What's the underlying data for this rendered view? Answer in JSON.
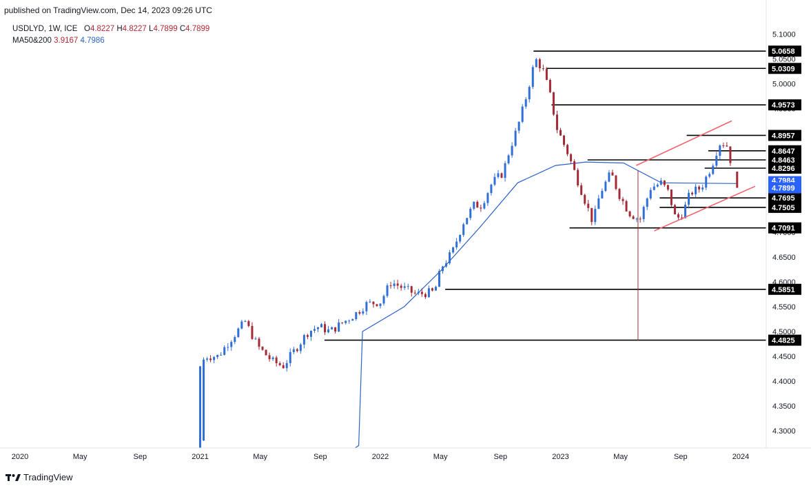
{
  "header": {
    "published": "published on TradingView.com, Dec 14, 2023 09:26 UTC"
  },
  "legend": {
    "symbol": "USDLYD, 1W, ICE",
    "open_label": "O",
    "open": "4.8227",
    "high_label": "H",
    "high": "4.8227",
    "low_label": "L",
    "low": "4.7899",
    "close_label": "C",
    "close": "4.7899",
    "ma_label": "MA50&200",
    "ma50": "3.9167",
    "ma200": "4.7986"
  },
  "footer": {
    "brand": "TradingView",
    "logo_icon": "tradingview-logo-icon"
  },
  "colors": {
    "bull": "#2f6fd6",
    "bear": "#a52a36",
    "ma": "#2a62c9",
    "trendline": "#f0626c",
    "level": "#000000",
    "current": "#2962ff"
  },
  "chart_data": {
    "type": "candlestick",
    "symbol": "USDLYD",
    "interval": "1W",
    "ylim": [
      4.265,
      5.13
    ],
    "y_ticks": [
      "5.1000",
      "5.0500",
      "5.0000",
      "4.9500",
      "4.9000",
      "4.8500",
      "4.8000",
      "4.7500",
      "4.7000",
      "4.6500",
      "4.6000",
      "4.5500",
      "4.5000",
      "4.4500",
      "4.4000",
      "4.3500",
      "4.3000"
    ],
    "x_labels": [
      "2020",
      "May",
      "Sep",
      "2021",
      "May",
      "Sep",
      "2022",
      "May",
      "Sep",
      "2023",
      "May",
      "Sep",
      "2024"
    ],
    "horizontal_levels": [
      "5.0658",
      "5.0309",
      "4.9573",
      "4.8957",
      "4.8647",
      "4.8463",
      "4.8296",
      "4.7695",
      "4.7505",
      "4.7091",
      "4.5851",
      "4.4825"
    ],
    "current_price": "4.7899",
    "hidden_label": "4.7984",
    "ma200_anchor_points": [
      [
        0.0,
        4.27
      ],
      [
        0.01,
        4.5
      ],
      [
        0.12,
        4.55
      ],
      [
        0.22,
        4.625
      ],
      [
        0.32,
        4.71
      ],
      [
        0.42,
        4.8
      ],
      [
        0.52,
        4.835
      ],
      [
        0.6,
        4.842
      ],
      [
        0.7,
        4.84
      ],
      [
        0.8,
        4.8
      ],
      [
        1.0,
        4.7986
      ]
    ],
    "anchors": [
      [
        2021.0,
        4.28
      ],
      [
        2021.02,
        4.45
      ],
      [
        2021.1,
        4.45
      ],
      [
        2021.16,
        4.48
      ],
      [
        2021.25,
        4.52
      ],
      [
        2021.32,
        4.47
      ],
      [
        2021.4,
        4.44
      ],
      [
        2021.46,
        4.43
      ],
      [
        2021.52,
        4.46
      ],
      [
        2021.6,
        4.5
      ],
      [
        2021.66,
        4.51
      ],
      [
        2021.72,
        4.5
      ],
      [
        2021.8,
        4.52
      ],
      [
        2021.86,
        4.535
      ],
      [
        2021.92,
        4.555
      ],
      [
        2022.0,
        4.56
      ],
      [
        2022.06,
        4.6
      ],
      [
        2022.14,
        4.585
      ],
      [
        2022.2,
        4.575
      ],
      [
        2022.3,
        4.58
      ],
      [
        2022.34,
        4.63
      ],
      [
        2022.4,
        4.66
      ],
      [
        2022.46,
        4.72
      ],
      [
        2022.52,
        4.755
      ],
      [
        2022.56,
        4.755
      ],
      [
        2022.62,
        4.8
      ],
      [
        2022.68,
        4.82
      ],
      [
        2022.72,
        4.87
      ],
      [
        2022.76,
        4.91
      ],
      [
        2022.8,
        4.96
      ],
      [
        2022.86,
        5.05
      ],
      [
        2022.9,
        5.03
      ],
      [
        2022.94,
        4.98
      ],
      [
        2022.98,
        4.91
      ],
      [
        2023.04,
        4.86
      ],
      [
        2023.1,
        4.8
      ],
      [
        2023.16,
        4.74
      ],
      [
        2023.18,
        4.72
      ],
      [
        2023.22,
        4.78
      ],
      [
        2023.28,
        4.82
      ],
      [
        2023.32,
        4.78
      ],
      [
        2023.38,
        4.74
      ],
      [
        2023.44,
        4.725
      ],
      [
        2023.5,
        4.79
      ],
      [
        2023.56,
        4.8
      ],
      [
        2023.6,
        4.78
      ],
      [
        2023.64,
        4.725
      ],
      [
        2023.68,
        4.74
      ],
      [
        2023.72,
        4.78
      ],
      [
        2023.78,
        4.79
      ],
      [
        2023.84,
        4.835
      ],
      [
        2023.88,
        4.88
      ],
      [
        2023.92,
        4.88
      ],
      [
        2023.96,
        4.82
      ],
      [
        2024.0,
        4.79
      ]
    ]
  }
}
